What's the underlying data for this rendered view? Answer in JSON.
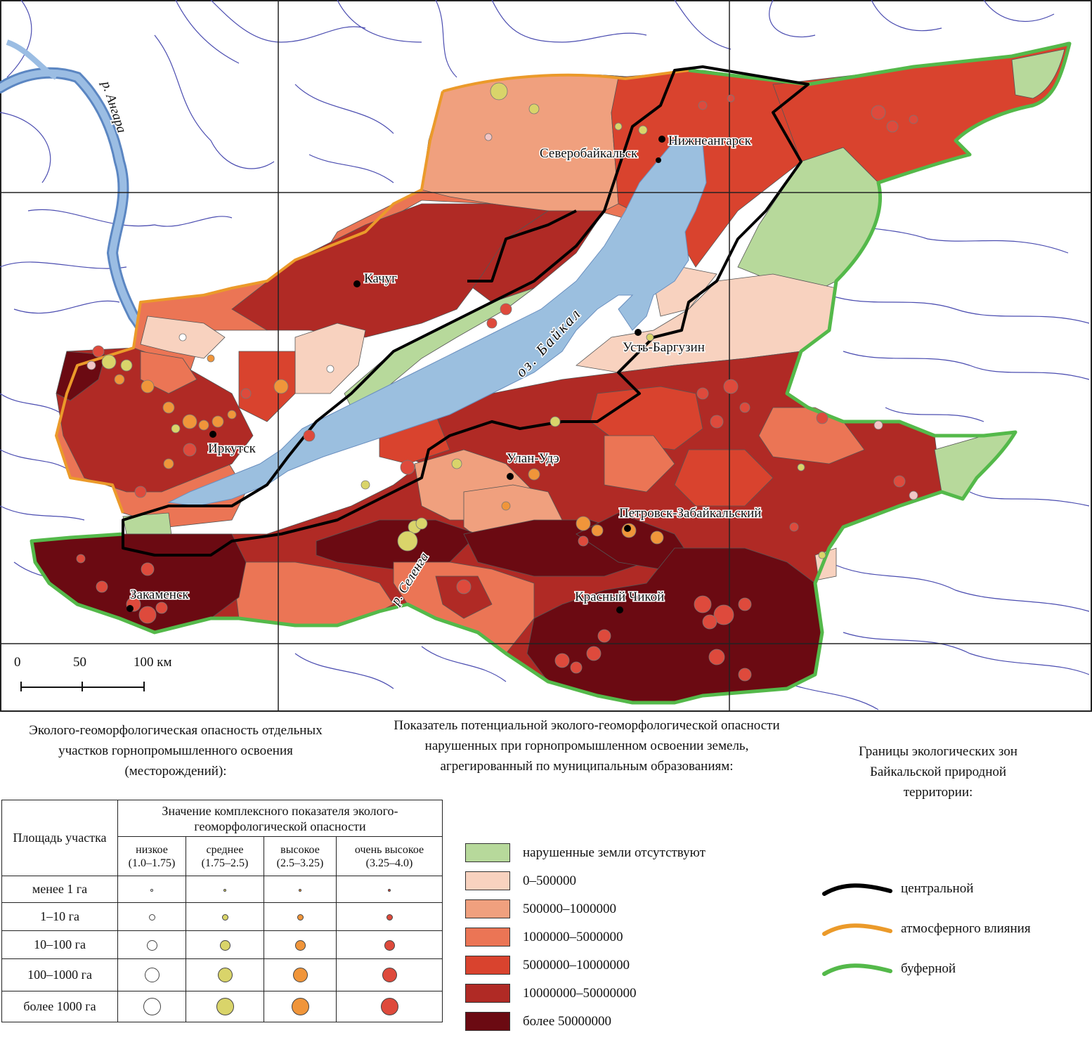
{
  "map": {
    "cities": [
      "Нижнеангарск",
      "Северобайкальск",
      "Качуг",
      "Усть-Баргузин",
      "Иркутск",
      "Улан-Удэ",
      "Петровск-Забайкальский",
      "Закаменск",
      "Красный Чикой"
    ],
    "rivers": [
      "р. Ангара",
      "р. Селенга"
    ],
    "lake": "оз. Байкал",
    "scale": {
      "t0": "0",
      "t50": "50",
      "t100": "100 км"
    }
  },
  "point_legend": {
    "title": "Эколого-геоморфологическая опасность отдельных участков горнопромышленного освоения (месторождений):",
    "area_header": "Площадь участка",
    "value_header": "Значение комплексного показателя эколого-геоморфологической опасности",
    "classes": [
      {
        "label": "низкое",
        "range": "(1.0–1.75)",
        "color": "#ffffff"
      },
      {
        "label": "среднее",
        "range": "(1.75–2.5)",
        "color": "#d9d46a"
      },
      {
        "label": "высокое",
        "range": "(2.5–3.25)",
        "color": "#f0953a"
      },
      {
        "label": "очень высокое",
        "range": "(3.25–4.0)",
        "color": "#de4a3c"
      }
    ],
    "areas": [
      "менее 1 га",
      "1–10 га",
      "10–100 га",
      "100–1000 га",
      "более 1000 га"
    ]
  },
  "fill_legend": {
    "title": "Показатель потенциальной эколого-геоморфологической опасности нарушенных при горнопромышленном освоении земель, агрегированный по муниципальным образованиям:",
    "items": [
      {
        "label": "нарушенные земли отсутствуют",
        "color": "#b7d99b"
      },
      {
        "label": "0–500000",
        "color": "#f8d2bf"
      },
      {
        "label": "500000–1000000",
        "color": "#f0a07e"
      },
      {
        "label": "1000000–5000000",
        "color": "#eb7555"
      },
      {
        "label": "5000000–10000000",
        "color": "#d9432e"
      },
      {
        "label": "10000000–50000000",
        "color": "#b02a25"
      },
      {
        "label": "более 50000000",
        "color": "#6b0a12"
      }
    ]
  },
  "zone_legend": {
    "title": "Границы экологических зон Байкальской природной территории:",
    "items": [
      {
        "label": "центральной",
        "color": "#000000"
      },
      {
        "label": "атмосферного влияния",
        "color": "#eb9a2a"
      },
      {
        "label": "буферной",
        "color": "#54b94a"
      }
    ]
  }
}
